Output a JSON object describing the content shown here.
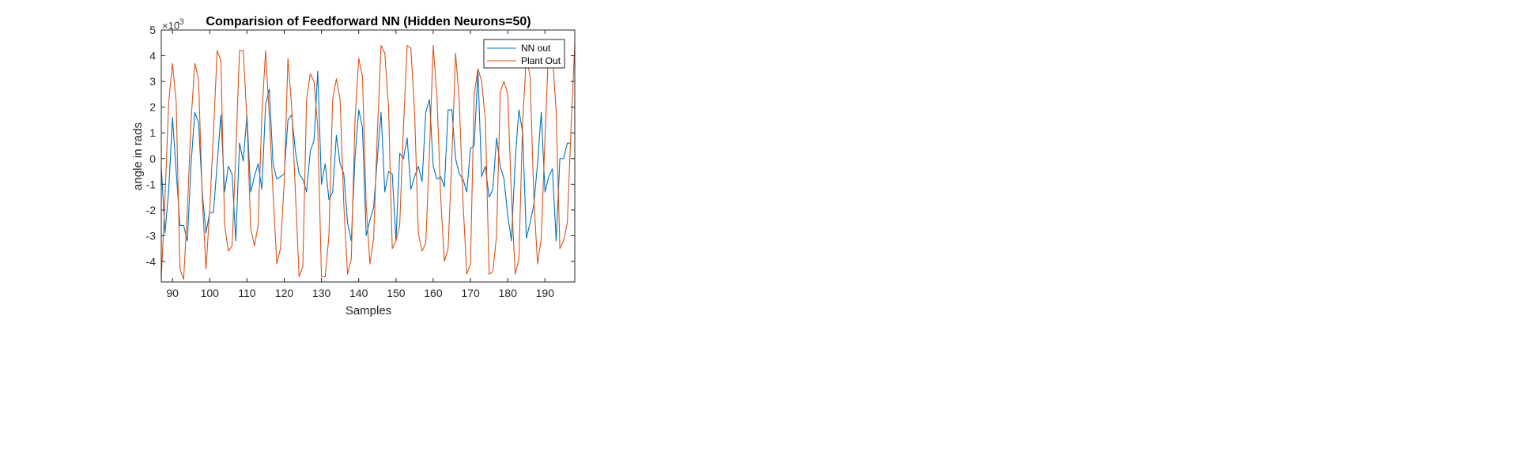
{
  "chart_data": {
    "type": "line",
    "title": "Comparision of Feedforward NN (Hidden Neurons=50)",
    "xlabel": "Samples",
    "ylabel": "angle in rads",
    "y_multiplier_label": "×10",
    "y_multiplier_exponent": "-3",
    "xlim": [
      87,
      198
    ],
    "ylim": [
      -4.8,
      5
    ],
    "xticks": [
      90,
      100,
      110,
      120,
      130,
      140,
      150,
      160,
      170,
      180,
      190
    ],
    "xtick_labels": [
      "90",
      "100",
      "110",
      "120",
      "130",
      "140",
      "150",
      "160",
      "170",
      "180",
      "190"
    ],
    "yticks": [
      -4,
      -3,
      -2,
      -1,
      0,
      1,
      2,
      3,
      4,
      5
    ],
    "ytick_labels": [
      "-4",
      "-3",
      "-2",
      "-1",
      "0",
      "1",
      "2",
      "3",
      "4",
      "5"
    ],
    "grid": false,
    "legend_position": "top-right",
    "x_start": 87,
    "series": [
      {
        "name": "NN out",
        "color": "#0072BD",
        "values": [
          -0.3,
          -2.9,
          -1.2,
          1.6,
          -0.5,
          -2.6,
          -2.6,
          -3.2,
          -0.2,
          1.8,
          1.4,
          -1.3,
          -2.9,
          -2.1,
          -2.1,
          -0.2,
          1.7,
          -1.3,
          -0.3,
          -0.6,
          -3.2,
          0.6,
          -0.1,
          1.7,
          -1.3,
          -0.7,
          -0.2,
          -1.2,
          2.1,
          2.7,
          -0.2,
          -0.8,
          -0.7,
          -0.6,
          1.5,
          1.7,
          0.3,
          -0.6,
          -0.8,
          -1.3,
          0.3,
          0.7,
          3.4,
          -1.0,
          -0.2,
          -1.6,
          -1.3,
          0.9,
          -0.2,
          -0.6,
          -2.5,
          -3.2,
          0.0,
          1.9,
          1.2,
          -3.0,
          -2.4,
          -1.9,
          0.0,
          1.8,
          -1.3,
          -0.5,
          -0.6,
          -3.2,
          0.2,
          0.0,
          0.8,
          -1.2,
          -0.7,
          -0.3,
          -0.9,
          1.8,
          2.3,
          -0.3,
          -0.8,
          -0.7,
          -1.1,
          1.9,
          1.9,
          0.0,
          -0.6,
          -0.8,
          -1.3,
          0.4,
          0.5,
          3.4,
          -0.7,
          -0.3,
          -1.5,
          -1.2,
          0.8,
          -0.3,
          -0.8,
          -2.2,
          -3.2,
          -0.1,
          1.9,
          1.0,
          -3.1,
          -2.5,
          -1.8,
          -0.2,
          1.8,
          -1.3,
          -0.7,
          -0.4,
          -3.2,
          0.0,
          0.0,
          0.6,
          0.6
        ]
      },
      {
        "name": "Plant Out",
        "color": "#D95319",
        "values": [
          -4.7,
          -1.5,
          2.2,
          3.7,
          2.2,
          -4.3,
          -4.7,
          -2.0,
          1.5,
          3.7,
          3.1,
          -1.5,
          -4.3,
          -2.0,
          1.0,
          4.2,
          3.8,
          -2.6,
          -3.6,
          -3.4,
          0.2,
          4.2,
          4.2,
          1.5,
          -2.7,
          -3.4,
          -2.6,
          1.7,
          4.2,
          1.6,
          -1.3,
          -4.1,
          -3.5,
          -0.9,
          3.9,
          2.0,
          -1.3,
          -4.6,
          -4.2,
          2.3,
          3.3,
          3.0,
          1.2,
          -4.6,
          -4.6,
          -3.0,
          2.3,
          3.1,
          2.3,
          -1.8,
          -4.5,
          -3.9,
          1.5,
          3.9,
          3.2,
          -1.8,
          -4.1,
          -3.1,
          1.0,
          4.4,
          4.1,
          2.0,
          -3.5,
          -3.2,
          -2.6,
          1.2,
          4.4,
          4.3,
          1.8,
          -2.9,
          -3.6,
          -3.3,
          0.3,
          4.4,
          2.4,
          -1.5,
          -4.0,
          -3.5,
          0.0,
          4.1,
          2.2,
          -1.7,
          -4.5,
          -4.1,
          2.5,
          3.5,
          3.0,
          1.5,
          -4.5,
          -4.4,
          -3.0,
          2.6,
          3.0,
          2.5,
          -1.5,
          -4.5,
          -3.9,
          1.4,
          4.0,
          3.2,
          -1.5,
          -4.1,
          -3.1,
          0.8,
          4.4,
          4.1,
          1.8,
          -3.5,
          -3.2,
          -2.5,
          1.2,
          4.5,
          4.4,
          2.6
        ]
      }
    ]
  }
}
